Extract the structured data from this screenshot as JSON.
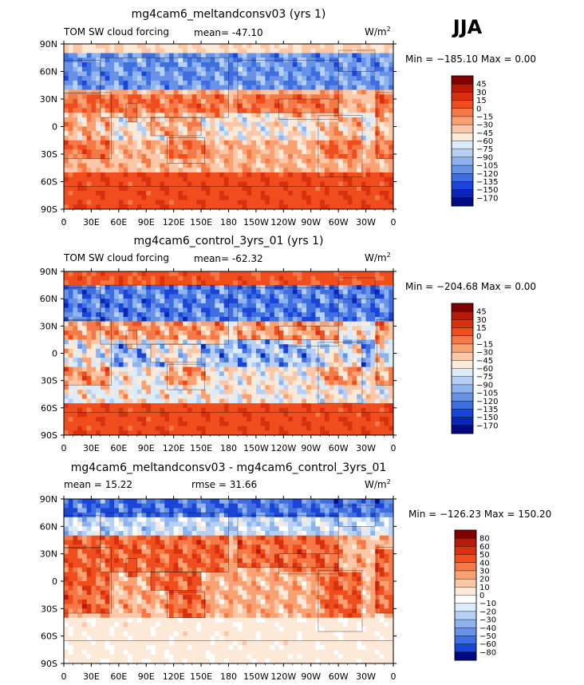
{
  "season": "JJA",
  "chart_data": [
    {
      "type": "heatmap",
      "title": "mg4cam6_meltandconsv03 (yrs 1)",
      "left_label": "TOM SW cloud forcing",
      "stat_text": "mean= -47.10",
      "units_text": "W/m",
      "units_sup": "2",
      "minmax_text": "Min = −185.10 Max =    0.00",
      "xticks": [
        "0",
        "30E",
        "60E",
        "90E",
        "120E",
        "150E",
        "180",
        "150W",
        "120W",
        "90W",
        "60W",
        "30W",
        "0"
      ],
      "yticks": [
        "90N",
        "60N",
        "30N",
        "0",
        "30S",
        "60S",
        "90S"
      ],
      "colorbar": {
        "levels": [
          "45",
          "30",
          "15",
          "0",
          "−15",
          "−30",
          "−45",
          "−60",
          "−75",
          "−90",
          "−105",
          "−120",
          "−135",
          "−150",
          "−170"
        ],
        "colors": [
          "#e8e8e8",
          "#800000",
          "#b71a08",
          "#d9300e",
          "#f04d1f",
          "#f57847",
          "#f9a173",
          "#fbc7a6",
          "#fde9d7",
          "#dcebf9",
          "#b5d0f4",
          "#8eb3ee",
          "#6792e6",
          "#3f6ee0",
          "#1a45d8",
          "#0a26b8",
          "#000a80"
        ]
      },
      "field": {
        "mode": "abs",
        "lat_range": [
          -90,
          90
        ],
        "lon_range": [
          0,
          360
        ]
      }
    },
    {
      "type": "heatmap",
      "title": "mg4cam6_control_3yrs_01 (yrs 1)",
      "left_label": "TOM SW cloud forcing",
      "stat_text": "mean= -62.32",
      "units_text": "W/m",
      "units_sup": "2",
      "minmax_text": "Min = −204.68 Max =    0.00",
      "xticks": [
        "0",
        "30E",
        "60E",
        "90E",
        "120E",
        "150E",
        "180",
        "150W",
        "120W",
        "90W",
        "60W",
        "30W",
        "0"
      ],
      "yticks": [
        "90N",
        "60N",
        "30N",
        "0",
        "30S",
        "60S",
        "90S"
      ],
      "colorbar": {
        "levels": [
          "45",
          "30",
          "15",
          "0",
          "−15",
          "−30",
          "−45",
          "−60",
          "−75",
          "−90",
          "−105",
          "−120",
          "−135",
          "−150",
          "−170"
        ],
        "colors": [
          "#e8e8e8",
          "#800000",
          "#b71a08",
          "#d9300e",
          "#f04d1f",
          "#f57847",
          "#f9a173",
          "#fbc7a6",
          "#fde9d7",
          "#dcebf9",
          "#b5d0f4",
          "#8eb3ee",
          "#6792e6",
          "#3f6ee0",
          "#1a45d8",
          "#0a26b8",
          "#000a80"
        ]
      },
      "field": {
        "mode": "abs2",
        "lat_range": [
          -90,
          90
        ],
        "lon_range": [
          0,
          360
        ]
      }
    },
    {
      "type": "heatmap",
      "title": "mg4cam6_meltandconsv03 - mg4cam6_control_3yrs_01",
      "left_label": "mean =  15.22",
      "stat_text": "rmse =  31.66",
      "units_text": "W/m",
      "units_sup": "2",
      "minmax_text": "Min = −126.23 Max = 150.20",
      "xticks": [
        "0",
        "30E",
        "60E",
        "90E",
        "120E",
        "150E",
        "180",
        "150W",
        "120W",
        "90W",
        "60W",
        "30W",
        "0"
      ],
      "yticks": [
        "90N",
        "60N",
        "30N",
        "0",
        "30S",
        "60S",
        "90S"
      ],
      "colorbar": {
        "levels": [
          "80",
          "60",
          "50",
          "40",
          "30",
          "20",
          "10",
          "0",
          "−10",
          "−20",
          "−30",
          "−40",
          "−50",
          "−60",
          "−80"
        ],
        "colors": [
          "#e8e8e8",
          "#800000",
          "#b71a08",
          "#d9300e",
          "#f04d1f",
          "#f57847",
          "#f9a173",
          "#fbc7a6",
          "#fde9d7",
          "#ffffff",
          "#dcebf9",
          "#b5d0f4",
          "#8eb3ee",
          "#6792e6",
          "#3f6ee0",
          "#1a45d8",
          "#000a80"
        ]
      },
      "field": {
        "mode": "diff",
        "lat_range": [
          -90,
          90
        ],
        "lon_range": [
          0,
          360
        ]
      }
    }
  ]
}
